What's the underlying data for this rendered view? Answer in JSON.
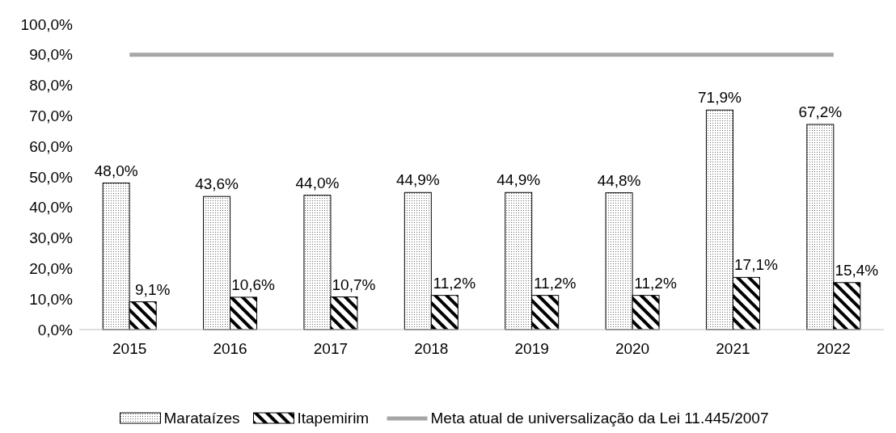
{
  "chart_data": {
    "type": "bar",
    "categories": [
      "2015",
      "2016",
      "2017",
      "2018",
      "2019",
      "2020",
      "2021",
      "2022"
    ],
    "series": [
      {
        "name": "Marataízes",
        "color": "#000000",
        "values": [
          48.0,
          43.6,
          44.0,
          44.9,
          44.9,
          44.8,
          71.9,
          67.2
        ],
        "value_labels": [
          "48,0%",
          "43,6%",
          "44,0%",
          "44,9%",
          "44,9%",
          "44,8%",
          "71,9%",
          "67,2%"
        ]
      },
      {
        "name": "Itapemirim",
        "color": "#000000",
        "values": [
          9.1,
          10.6,
          10.7,
          11.2,
          11.2,
          11.2,
          17.1,
          15.4
        ],
        "value_labels": [
          "9,1%",
          "10,6%",
          "10,7%",
          "11,2%",
          "11,2%",
          "11,2%",
          "17,1%",
          "15,4%"
        ]
      },
      {
        "name": "Meta atual de universalização da Lei 11.445/2007",
        "type": "line",
        "color": "#a6a6a6",
        "values": [
          90,
          90,
          90,
          90,
          90,
          90,
          90,
          90
        ]
      }
    ],
    "ylim": [
      0,
      100
    ],
    "yticks": [
      {
        "value": 0,
        "label": "0,0%"
      },
      {
        "value": 10,
        "label": "10,0%"
      },
      {
        "value": 20,
        "label": "20,0%"
      },
      {
        "value": 30,
        "label": "30,0%"
      },
      {
        "value": 40,
        "label": "40,0%"
      },
      {
        "value": 50,
        "label": "50,0%"
      },
      {
        "value": 60,
        "label": "60,0%"
      },
      {
        "value": 70,
        "label": "70,0%"
      },
      {
        "value": 80,
        "label": "80,0%"
      },
      {
        "value": 90,
        "label": "90,0%"
      },
      {
        "value": 100,
        "label": "100,0%"
      }
    ],
    "grid": false,
    "legend": "bottom"
  }
}
